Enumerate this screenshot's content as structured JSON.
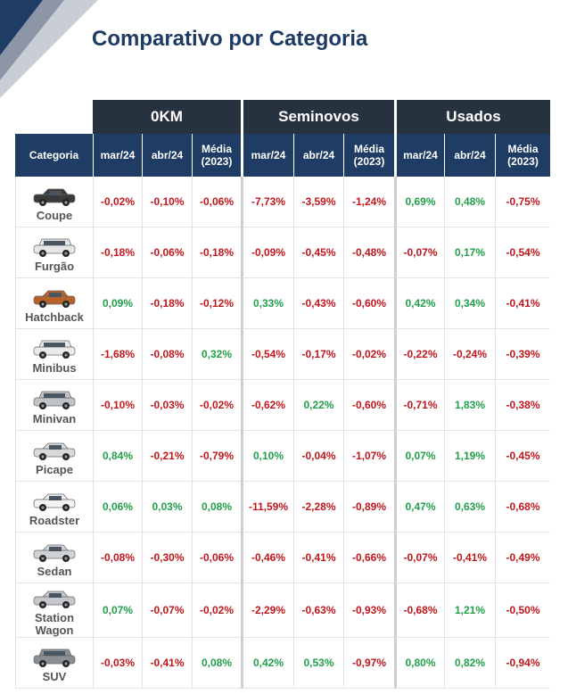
{
  "title": "Comparativo por Categoria",
  "groups": [
    "0KM",
    "Seminovos",
    "Usados"
  ],
  "columns": {
    "category": "Categoria",
    "mar": "mar/24",
    "abr": "abr/24",
    "media_line1": "Média",
    "media_line2": "(2023)"
  },
  "colors": {
    "negative": "#c0171d",
    "positive": "#21a04a",
    "group_header": "#27323f",
    "column_header": "#1e3c64",
    "title": "#1d3a63"
  },
  "rows": [
    {
      "category": "Coupe",
      "icon": "coupe-car-icon",
      "values": [
        "-0,02%",
        "-0,10%",
        "-0,06%",
        "-7,73%",
        "-3,59%",
        "-1,24%",
        "0,69%",
        "0,48%",
        "-0,75%"
      ]
    },
    {
      "category": "Furgão",
      "icon": "van-car-icon",
      "values": [
        "-0,18%",
        "-0,06%",
        "-0,18%",
        "-0,09%",
        "-0,45%",
        "-0,48%",
        "-0,07%",
        "0,17%",
        "-0,54%"
      ]
    },
    {
      "category": "Hatchback",
      "icon": "hatchback-car-icon",
      "values": [
        "0,09%",
        "-0,18%",
        "-0,12%",
        "0,33%",
        "-0,43%",
        "-0,60%",
        "0,42%",
        "0,34%",
        "-0,41%"
      ]
    },
    {
      "category": "Minibus",
      "icon": "minibus-car-icon",
      "values": [
        "-1,68%",
        "-0,08%",
        "0,32%",
        "-0,54%",
        "-0,17%",
        "-0,02%",
        "-0,22%",
        "-0,24%",
        "-0,39%"
      ]
    },
    {
      "category": "Minivan",
      "icon": "minivan-car-icon",
      "values": [
        "-0,10%",
        "-0,03%",
        "-0,02%",
        "-0,62%",
        "0,22%",
        "-0,60%",
        "-0,71%",
        "1,83%",
        "-0,38%"
      ]
    },
    {
      "category": "Picape",
      "icon": "pickup-car-icon",
      "values": [
        "0,84%",
        "-0,21%",
        "-0,79%",
        "0,10%",
        "-0,04%",
        "-1,07%",
        "0,07%",
        "1,19%",
        "-0,45%"
      ]
    },
    {
      "category": "Roadster",
      "icon": "roadster-car-icon",
      "values": [
        "0,06%",
        "0,03%",
        "0,08%",
        "-11,59%",
        "-2,28%",
        "-0,89%",
        "0,47%",
        "0,63%",
        "-0,68%"
      ]
    },
    {
      "category": "Sedan",
      "icon": "sedan-car-icon",
      "values": [
        "-0,08%",
        "-0,30%",
        "-0,06%",
        "-0,46%",
        "-0,41%",
        "-0,66%",
        "-0,07%",
        "-0,41%",
        "-0,49%"
      ]
    },
    {
      "category_line1": "Station",
      "category_line2": "Wagon",
      "icon": "station-wagon-car-icon",
      "values": [
        "0,07%",
        "-0,07%",
        "-0,02%",
        "-2,29%",
        "-0,63%",
        "-0,93%",
        "-0,68%",
        "1,21%",
        "-0,50%"
      ]
    },
    {
      "category": "SUV",
      "icon": "suv-car-icon",
      "values": [
        "-0,03%",
        "-0,41%",
        "0,08%",
        "0,42%",
        "0,53%",
        "-0,97%",
        "0,80%",
        "0,82%",
        "-0,94%"
      ]
    }
  ]
}
